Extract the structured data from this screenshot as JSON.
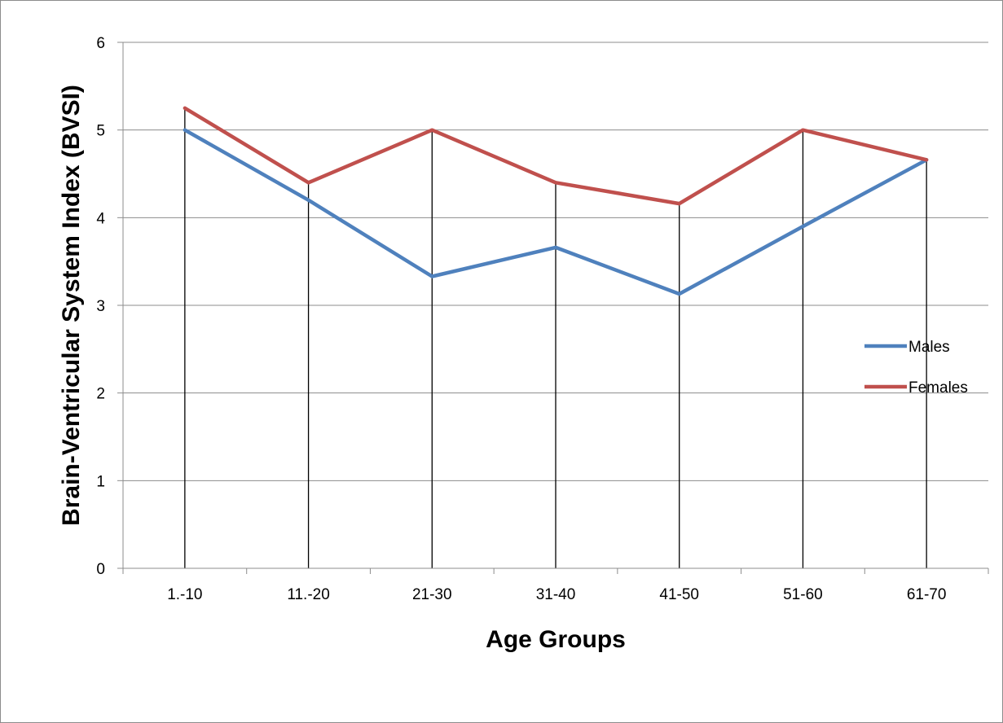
{
  "chart_data": {
    "type": "line",
    "title": "",
    "xlabel": "Age Groups",
    "ylabel": "Brain-Ventricular System Index (BVSI)",
    "categories": [
      "1.-10",
      "11.-20",
      "21-30",
      "31-40",
      "41-50",
      "51-60",
      "61-70"
    ],
    "ylim": [
      0,
      6
    ],
    "yticks": [
      0,
      1,
      2,
      3,
      4,
      5,
      6
    ],
    "grid": "horizontal",
    "drop_lines": true,
    "legend_position": "right",
    "series": [
      {
        "name": "Males",
        "color": "#4f81bd",
        "values": [
          5.0,
          4.2,
          3.33,
          3.66,
          3.13,
          3.9,
          4.66
        ]
      },
      {
        "name": "Females",
        "color": "#c0504d",
        "values": [
          5.25,
          4.4,
          5.0,
          4.4,
          4.16,
          5.0,
          4.66
        ]
      }
    ]
  }
}
